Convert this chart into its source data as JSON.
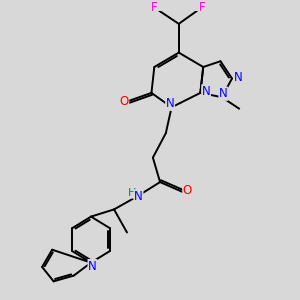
{
  "bg_color": "#d8d8d8",
  "bond_color": "#000000",
  "N_color": "#0000ff",
  "O_color": "#ff0000",
  "F_color": "#ff00cc",
  "H_color": "#008080",
  "line_width": 1.4,
  "font_size": 8.5,
  "fig_size": [
    3.0,
    3.0
  ],
  "dpi": 100,
  "xlim": [
    0,
    10
  ],
  "ylim": [
    0,
    10
  ]
}
